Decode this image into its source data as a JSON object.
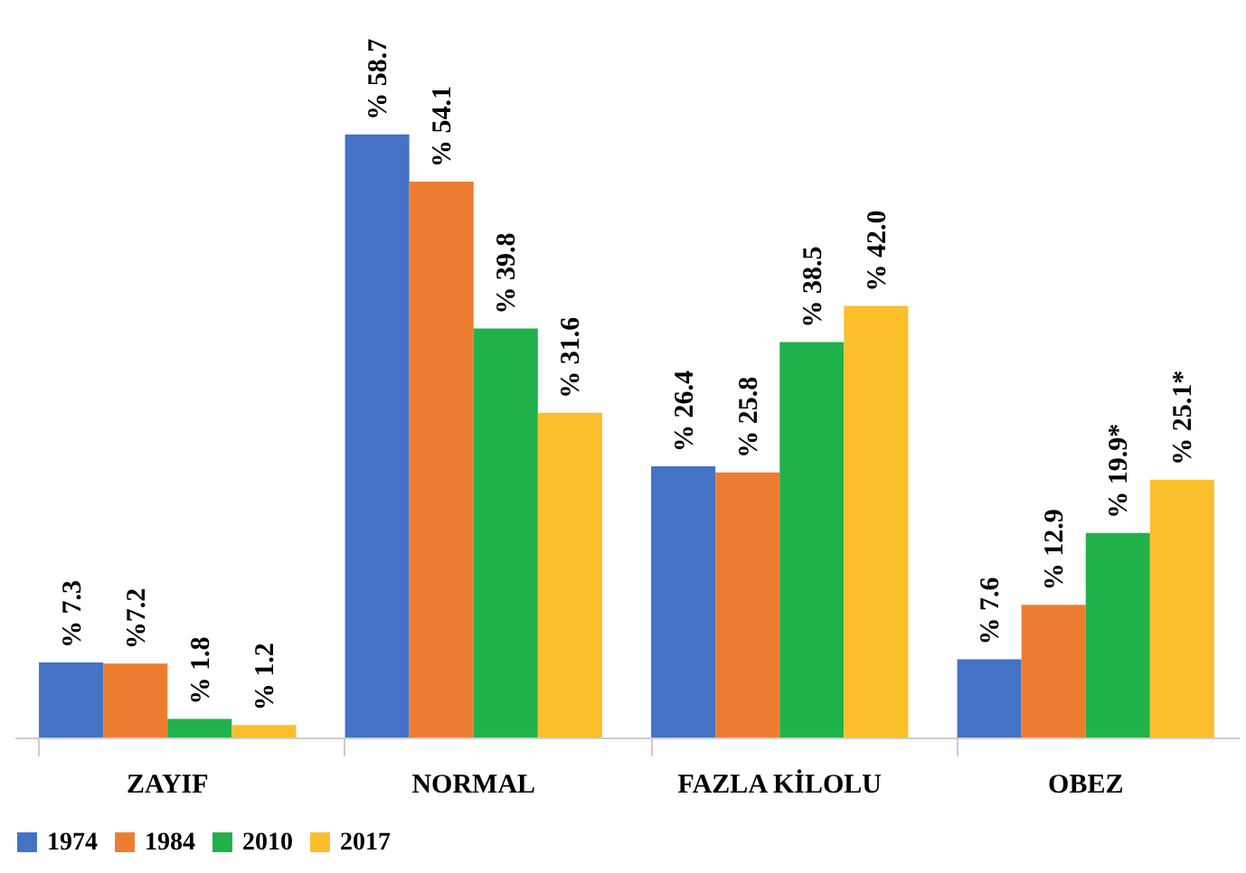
{
  "chart_data": {
    "type": "bar",
    "categories": [
      "ZAYIF",
      "NORMAL",
      "FAZLA KİLOLU",
      "OBEZ"
    ],
    "series": [
      {
        "name": "1974",
        "color": "#4472c4",
        "values": [
          7.3,
          58.7,
          26.4,
          7.6
        ],
        "value_labels": [
          "% 7.3",
          "% 58.7",
          "% 26.4",
          "% 7.6"
        ]
      },
      {
        "name": "1984",
        "color": "#ed7d31",
        "values": [
          7.2,
          54.1,
          25.8,
          12.9
        ],
        "value_labels": [
          "%7.2",
          "% 54.1",
          "% 25.8",
          "% 12.9"
        ]
      },
      {
        "name": "2010",
        "color": "#21b14b",
        "values": [
          1.8,
          39.8,
          38.5,
          19.9
        ],
        "value_labels": [
          "% 1.8",
          "% 39.8",
          "% 38.5",
          "% 19.9*"
        ]
      },
      {
        "name": "2017",
        "color": "#fbbf2c",
        "values": [
          1.2,
          31.6,
          42.0,
          25.1
        ],
        "value_labels": [
          "% 1.2",
          "% 31.6",
          "% 42.0",
          "% 25.1*"
        ]
      }
    ],
    "legend": "bottom"
  }
}
